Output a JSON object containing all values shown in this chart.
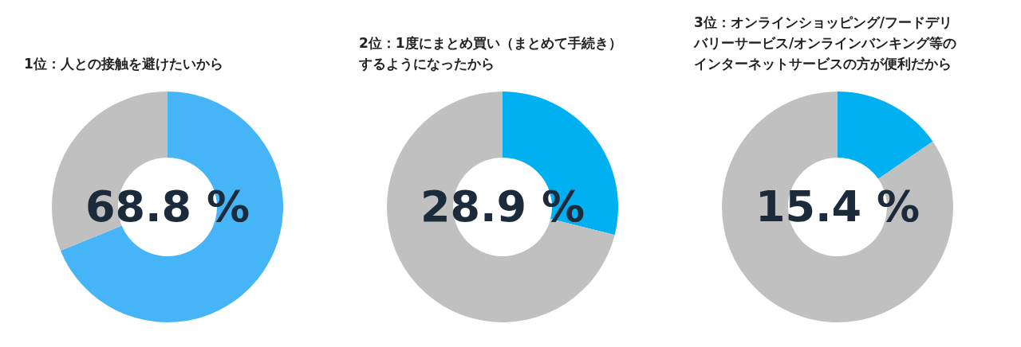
{
  "chart_data": [
    {
      "type": "donut",
      "title": "1位：人との接触を避けたいから",
      "categories": [
        null,
        null
      ],
      "values": [
        68.8,
        31.2
      ],
      "colors": [
        "#45b5f7",
        "#c0c0c0"
      ],
      "value_labels": [
        "68.8 %",
        null
      ],
      "legend": false
    },
    {
      "type": "donut",
      "title": "2位：1度にまとめ買い（まとめて手続き）するようになったから",
      "categories": [
        null,
        null
      ],
      "values": [
        28.9,
        71.1
      ],
      "colors": [
        "#00b0f0",
        "#c0c0c0"
      ],
      "value_labels": [
        "28.9 %",
        null
      ],
      "legend": false
    },
    {
      "type": "donut",
      "title": "3位：オンラインショッピング/フードデリバリーサービス/オンラインバンキング等のインターネットサービスの方が便利だから",
      "categories": [
        null,
        null
      ],
      "values": [
        15.4,
        84.6
      ],
      "colors": [
        "#00b0f0",
        "#c0c0c0"
      ],
      "value_labels": [
        "15.4 %",
        null
      ],
      "legend": false
    }
  ]
}
